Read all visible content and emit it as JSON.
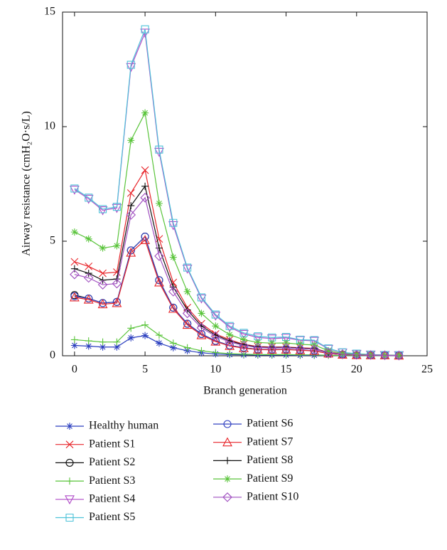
{
  "chart_data": {
    "type": "line",
    "x_label": "Branch generation",
    "y_label": "Airway resistance (cmH₂O·s/L)",
    "x": [
      0,
      1,
      2,
      3,
      4,
      5,
      6,
      7,
      8,
      9,
      10,
      11,
      12,
      13,
      14,
      15,
      16,
      17,
      18,
      19,
      20,
      21,
      22,
      23
    ],
    "xlim": [
      -0.85,
      25
    ],
    "xticks": [
      0,
      5,
      10,
      15,
      20,
      25
    ],
    "ylim": [
      0,
      15
    ],
    "yticks": [
      0,
      5,
      10,
      15
    ],
    "grid": false,
    "series": [
      {
        "name": "Healthy human",
        "color": "#2b3fbf",
        "marker": "asterisk",
        "values": [
          0.45,
          0.42,
          0.38,
          0.38,
          0.78,
          0.88,
          0.55,
          0.35,
          0.22,
          0.13,
          0.08,
          0.05,
          0.04,
          0.03,
          0.03,
          0.03,
          0.02,
          0.02,
          0.02,
          0.01,
          0.01,
          0.01,
          0.01,
          0.01
        ]
      },
      {
        "name": "Patient S1",
        "color": "#e8262b",
        "marker": "x",
        "values": [
          4.1,
          3.9,
          3.6,
          3.65,
          7.1,
          8.1,
          5.1,
          3.2,
          2.1,
          1.4,
          0.95,
          0.7,
          0.5,
          0.4,
          0.38,
          0.38,
          0.35,
          0.32,
          0.15,
          0.08,
          0.05,
          0.03,
          0.02,
          0.02
        ]
      },
      {
        "name": "Patient S2",
        "color": "#111111",
        "marker": "circle",
        "values": [
          2.65,
          2.5,
          2.3,
          2.35,
          4.6,
          5.2,
          3.3,
          2.1,
          1.4,
          0.95,
          0.65,
          0.45,
          0.35,
          0.28,
          0.27,
          0.28,
          0.25,
          0.22,
          0.1,
          0.05,
          0.03,
          0.02,
          0.02,
          0.01
        ]
      },
      {
        "name": "Patient S3",
        "color": "#59c43a",
        "marker": "plus",
        "values": [
          0.7,
          0.65,
          0.6,
          0.6,
          1.2,
          1.35,
          0.9,
          0.55,
          0.35,
          0.22,
          0.14,
          0.09,
          0.07,
          0.05,
          0.05,
          0.05,
          0.04,
          0.04,
          0.02,
          0.01,
          0.01,
          0.01,
          0.01,
          0.01
        ]
      },
      {
        "name": "Patient S4",
        "color": "#b04cc8",
        "marker": "triangle-down",
        "values": [
          7.25,
          6.85,
          6.35,
          6.45,
          12.6,
          14.1,
          8.9,
          5.7,
          3.8,
          2.5,
          1.75,
          1.25,
          0.95,
          0.8,
          0.75,
          0.78,
          0.68,
          0.65,
          0.3,
          0.14,
          0.08,
          0.05,
          0.03,
          0.02
        ]
      },
      {
        "name": "Patient S5",
        "color": "#4fc3d9",
        "marker": "square",
        "values": [
          7.3,
          6.9,
          6.4,
          6.5,
          12.7,
          14.25,
          9.0,
          5.8,
          3.85,
          2.55,
          1.8,
          1.3,
          1.0,
          0.85,
          0.8,
          0.82,
          0.7,
          0.68,
          0.32,
          0.15,
          0.09,
          0.05,
          0.03,
          0.02
        ]
      },
      {
        "name": "Patient S6",
        "color": "#3040c0",
        "marker": "circle",
        "values": [
          2.6,
          2.5,
          2.3,
          2.35,
          4.6,
          5.2,
          3.3,
          2.1,
          1.4,
          0.95,
          0.65,
          0.45,
          0.35,
          0.28,
          0.27,
          0.28,
          0.25,
          0.22,
          0.1,
          0.05,
          0.03,
          0.02,
          0.02,
          0.01
        ]
      },
      {
        "name": "Patient S7",
        "color": "#e8262b",
        "marker": "triangle-up",
        "values": [
          2.55,
          2.45,
          2.25,
          2.3,
          4.5,
          5.05,
          3.2,
          2.05,
          1.35,
          0.9,
          0.62,
          0.43,
          0.33,
          0.27,
          0.26,
          0.27,
          0.24,
          0.21,
          0.1,
          0.05,
          0.03,
          0.02,
          0.02,
          0.01
        ]
      },
      {
        "name": "Patient S8",
        "color": "#111111",
        "marker": "plus",
        "values": [
          3.8,
          3.6,
          3.3,
          3.35,
          6.55,
          7.4,
          4.7,
          3.0,
          2.0,
          1.3,
          0.9,
          0.65,
          0.48,
          0.38,
          0.36,
          0.37,
          0.33,
          0.3,
          0.14,
          0.07,
          0.04,
          0.03,
          0.02,
          0.01
        ]
      },
      {
        "name": "Patient S9",
        "color": "#59c43a",
        "marker": "asterisk",
        "values": [
          5.4,
          5.1,
          4.7,
          4.8,
          9.4,
          10.6,
          6.65,
          4.3,
          2.8,
          1.85,
          1.3,
          0.92,
          0.7,
          0.58,
          0.55,
          0.56,
          0.5,
          0.47,
          0.22,
          0.1,
          0.06,
          0.04,
          0.02,
          0.02
        ]
      },
      {
        "name": "Patient S10",
        "color": "#a050c0",
        "marker": "diamond",
        "values": [
          3.55,
          3.4,
          3.1,
          3.15,
          6.15,
          6.9,
          4.35,
          2.8,
          1.85,
          1.22,
          0.85,
          0.6,
          0.45,
          0.36,
          0.34,
          0.35,
          0.31,
          0.29,
          0.13,
          0.07,
          0.04,
          0.03,
          0.02,
          0.01
        ]
      }
    ]
  }
}
